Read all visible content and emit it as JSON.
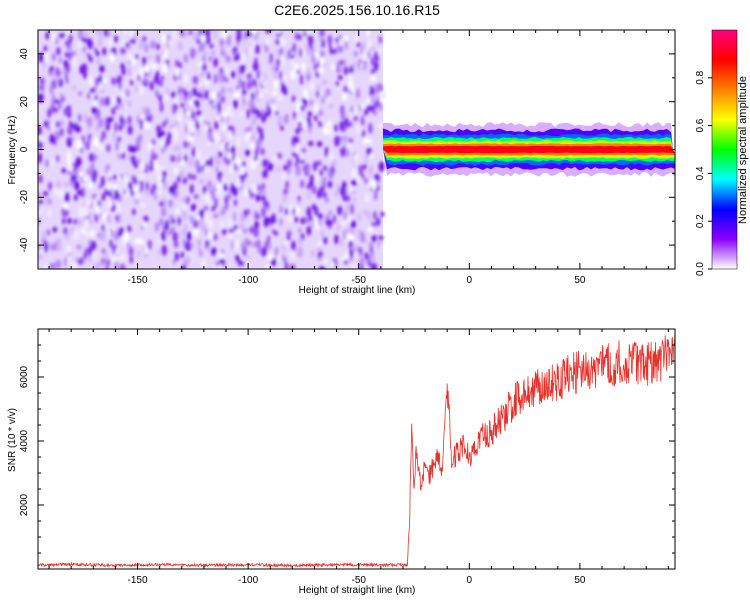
{
  "title": "C2E6.2025.156.10.16.R15",
  "chart_data": [
    {
      "type": "heatmap",
      "xlabel": "Height of straight line (km)",
      "ylabel": "Frequency (Hz)",
      "xlim": [
        -195,
        93
      ],
      "ylim": [
        -50,
        50
      ],
      "x_ticks": [
        -150,
        -100,
        -50,
        0,
        50
      ],
      "y_ticks": [
        -40,
        -20,
        0,
        20,
        40
      ],
      "colorbar": {
        "label": "Normalized spectral amplitude",
        "range": [
          0,
          1
        ],
        "ticks": [
          0.0,
          0.2,
          0.4,
          0.6,
          0.8
        ],
        "tick_labels": [
          "0.0",
          "0.2",
          "0.4",
          "0.6",
          "0.8"
        ],
        "colormap": [
          "#ffffff",
          "#8b00ff",
          "#0000ff",
          "#00ffff",
          "#00ff00",
          "#ffff00",
          "#ff8000",
          "#ff0000",
          "#ff007f"
        ]
      },
      "regions": [
        {
          "x_range": [
            -195,
            -39
          ],
          "freq_range": [
            -50,
            50
          ],
          "amplitude_range": [
            0.0,
            0.15
          ],
          "description": "noise"
        },
        {
          "x_range": [
            -39,
            93
          ],
          "center_freq": 0,
          "band_halfwidth_hz": 4,
          "peak_amplitude": 0.9
        }
      ],
      "grid": false
    },
    {
      "type": "line",
      "xlabel": "Height of straight line (km)",
      "ylabel": "SNR (10 * v/v)",
      "xlim": [
        -195,
        93
      ],
      "ylim": [
        0,
        7500
      ],
      "x_ticks": [
        -150,
        -100,
        -50,
        0,
        50
      ],
      "y_ticks": [
        2000,
        4000,
        6000
      ],
      "color": "#e8302a",
      "series": [
        {
          "x": [
            -195,
            -180,
            -160,
            -140,
            -120,
            -100,
            -80,
            -60,
            -40,
            -28,
            -27,
            -26,
            -25,
            -24,
            -22,
            -20,
            -18,
            -15,
            -12,
            -10,
            -8,
            -5,
            -3,
            0,
            5,
            10,
            15,
            20,
            25,
            30,
            40,
            50,
            60,
            70,
            80,
            93
          ],
          "y": [
            120,
            150,
            110,
            140,
            120,
            130,
            110,
            140,
            120,
            130,
            1500,
            4900,
            2200,
            3800,
            2600,
            3300,
            2900,
            3500,
            3100,
            5900,
            3300,
            3700,
            3900,
            3500,
            4100,
            4300,
            4700,
            5200,
            5500,
            5700,
            5900,
            6200,
            6300,
            6500,
            6400,
            6700
          ]
        }
      ],
      "grid": false
    }
  ]
}
